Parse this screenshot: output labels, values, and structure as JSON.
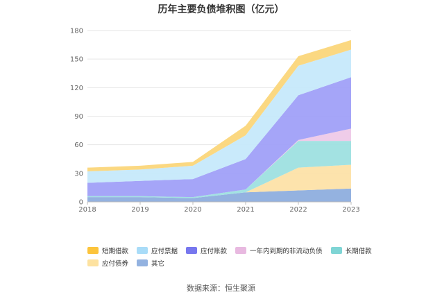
{
  "chart_data": {
    "type": "area",
    "stacked": true,
    "title": "历年主要负债堆积图（亿元）",
    "categories": [
      "2018",
      "2019",
      "2020",
      "2021",
      "2022",
      "2023"
    ],
    "yticks": [
      0,
      30,
      60,
      90,
      120,
      150,
      180
    ],
    "ylim": [
      0,
      180
    ],
    "series": [
      {
        "name": "其它",
        "color": "#8eaede",
        "values": [
          5,
          5,
          4,
          10,
          12,
          14
        ]
      },
      {
        "name": "应付债券",
        "color": "#fde2a8",
        "values": [
          0,
          0,
          0,
          0,
          24,
          25
        ]
      },
      {
        "name": "长期借款",
        "color": "#9ee0e0",
        "values": [
          1,
          1,
          1,
          3,
          28,
          25
        ]
      },
      {
        "name": "一年内到期的非流动负债",
        "color": "#eec9e8",
        "values": [
          0,
          0,
          0,
          0,
          1,
          13
        ]
      },
      {
        "name": "应付账款",
        "color": "#a0a0f8",
        "values": [
          14,
          16,
          19,
          32,
          47,
          54
        ]
      },
      {
        "name": "应付票据",
        "color": "#c6e9fb",
        "values": [
          12,
          12,
          14,
          25,
          31,
          29
        ]
      },
      {
        "name": "短期借款",
        "color": "#fbd67a",
        "values": [
          4,
          4,
          4,
          10,
          10,
          10
        ]
      }
    ],
    "legend": [
      [
        {
          "name": "短期借款",
          "color": "#fcc43c"
        },
        {
          "name": "应付票据",
          "color": "#a9dcf8"
        },
        {
          "name": "应付账款",
          "color": "#7777ee"
        },
        {
          "name": "一年内到期的非流动负债",
          "color": "#e8b9e0"
        },
        {
          "name": "长期借款",
          "color": "#7fd5d5"
        }
      ],
      [
        {
          "name": "应付债券",
          "color": "#fde2a0"
        },
        {
          "name": "其它",
          "color": "#93b2e0"
        }
      ]
    ],
    "source": "数据来源：恒生聚源"
  }
}
